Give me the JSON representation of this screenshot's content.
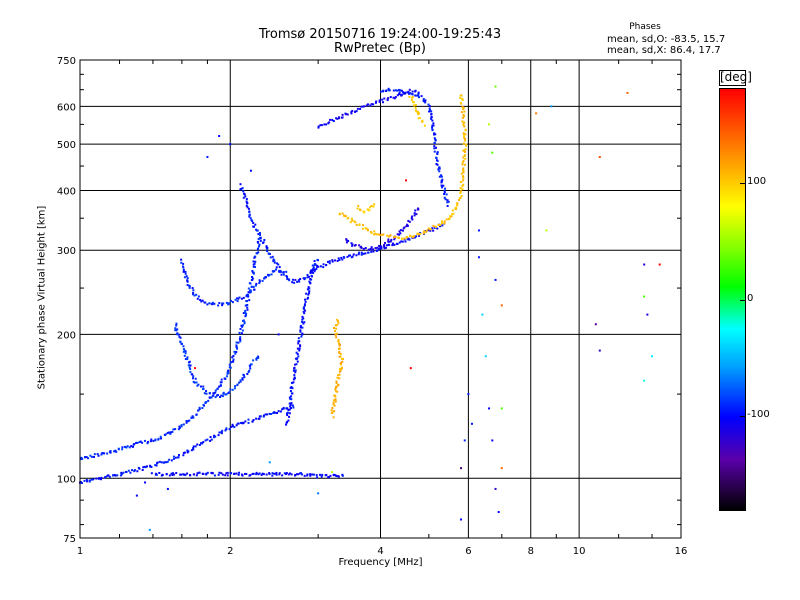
{
  "title_line1": "Tromsø 20150716 19:24:00-19:25:43",
  "title_line2": "RwPretec (Bp)",
  "phases": {
    "heading": "Phases",
    "o_line": "mean, sd,O: -83.5, 15.7",
    "x_line": "mean, sd,X: 86.4, 17.7"
  },
  "colorbar": {
    "unit": "[deg]",
    "ticks": [
      "100",
      "0",
      "-100"
    ],
    "tick_values": [
      100,
      0,
      -100
    ],
    "range": [
      -180,
      180
    ]
  },
  "chart_data": {
    "type": "scatter",
    "xlabel": "Frequency [MHz]",
    "ylabel": "Stationary phase Virtual Height [km]",
    "xscale": "log",
    "yscale": "log",
    "xlim": [
      1,
      16
    ],
    "ylim": [
      75,
      750
    ],
    "x_ticks": [
      "1",
      "2",
      "4",
      "6",
      "8",
      "10",
      "16"
    ],
    "x_tick_values": [
      1,
      2,
      4,
      6,
      8,
      10,
      16
    ],
    "y_ticks": [
      "750",
      "600",
      "500",
      "400",
      "300",
      "200",
      "100",
      "75"
    ],
    "y_tick_values": [
      750,
      600,
      500,
      400,
      300,
      200,
      100,
      75
    ],
    "grid": true,
    "traces": [
      {
        "phase": -95,
        "points": [
          [
            1.0,
            98
          ],
          [
            1.1,
            100
          ],
          [
            1.2,
            102
          ],
          [
            1.3,
            104
          ],
          [
            1.4,
            106
          ],
          [
            1.5,
            109
          ],
          [
            1.6,
            112
          ],
          [
            1.7,
            116
          ],
          [
            1.8,
            120
          ],
          [
            1.9,
            124
          ],
          [
            2.0,
            128
          ],
          [
            2.1,
            130
          ],
          [
            2.2,
            132
          ],
          [
            2.3,
            134
          ],
          [
            2.4,
            136
          ],
          [
            2.5,
            138
          ],
          [
            2.6,
            140
          ],
          [
            2.7,
            142
          ]
        ]
      },
      {
        "phase": -90,
        "points": [
          [
            1.0,
            110
          ],
          [
            1.1,
            112
          ],
          [
            1.2,
            115
          ],
          [
            1.3,
            118
          ],
          [
            1.4,
            120
          ],
          [
            1.5,
            124
          ],
          [
            1.6,
            128
          ],
          [
            1.7,
            136
          ],
          [
            1.8,
            145
          ],
          [
            1.9,
            155
          ],
          [
            2.0,
            170
          ],
          [
            2.05,
            185
          ],
          [
            2.1,
            200
          ],
          [
            2.15,
            225
          ],
          [
            2.2,
            255
          ],
          [
            2.25,
            290
          ],
          [
            2.3,
            320
          ]
        ]
      },
      {
        "phase": -100,
        "points": [
          [
            1.4,
            102
          ],
          [
            1.6,
            102
          ],
          [
            1.8,
            102
          ],
          [
            2.0,
            102
          ],
          [
            2.2,
            102
          ],
          [
            2.4,
            102
          ],
          [
            2.6,
            102
          ],
          [
            2.8,
            102
          ],
          [
            3.0,
            101
          ],
          [
            3.2,
            101
          ],
          [
            3.4,
            101
          ]
        ]
      },
      {
        "phase": -92,
        "points": [
          [
            1.6,
            285
          ],
          [
            1.62,
            270
          ],
          [
            1.65,
            255
          ],
          [
            1.7,
            242
          ],
          [
            1.75,
            235
          ],
          [
            1.8,
            232
          ],
          [
            1.9,
            231
          ],
          [
            2.0,
            233
          ],
          [
            2.1,
            238
          ],
          [
            2.2,
            245
          ],
          [
            2.3,
            258
          ],
          [
            2.4,
            268
          ],
          [
            2.5,
            272
          ],
          [
            2.6,
            268
          ]
        ]
      },
      {
        "phase": -88,
        "points": [
          [
            1.55,
            210
          ],
          [
            1.6,
            190
          ],
          [
            1.65,
            175
          ],
          [
            1.7,
            160
          ],
          [
            1.8,
            150
          ],
          [
            1.9,
            148
          ],
          [
            2.0,
            152
          ],
          [
            2.1,
            160
          ],
          [
            2.2,
            172
          ],
          [
            2.3,
            182
          ]
        ]
      },
      {
        "phase": -95,
        "points": [
          [
            2.1,
            410
          ],
          [
            2.15,
            380
          ],
          [
            2.2,
            350
          ],
          [
            2.3,
            320
          ],
          [
            2.4,
            295
          ],
          [
            2.5,
            275
          ],
          [
            2.6,
            262
          ],
          [
            2.7,
            258
          ],
          [
            2.8,
            260
          ],
          [
            2.9,
            270
          ],
          [
            3.0,
            290
          ]
        ]
      },
      {
        "phase": -98,
        "points": [
          [
            2.6,
            130
          ],
          [
            2.65,
            150
          ],
          [
            2.7,
            170
          ],
          [
            2.75,
            190
          ],
          [
            2.8,
            215
          ],
          [
            2.85,
            240
          ],
          [
            2.9,
            262
          ],
          [
            2.95,
            275
          ],
          [
            3.0,
            280
          ]
        ]
      },
      {
        "phase": -100,
        "points": [
          [
            2.9,
            270
          ],
          [
            3.2,
            285
          ],
          [
            3.5,
            292
          ],
          [
            3.8,
            298
          ],
          [
            4.1,
            305
          ],
          [
            4.4,
            312
          ],
          [
            4.7,
            320
          ],
          [
            5.0,
            330
          ],
          [
            5.2,
            335
          ],
          [
            5.4,
            340
          ]
        ]
      },
      {
        "phase": -110,
        "points": [
          [
            3.4,
            315
          ],
          [
            3.6,
            305
          ],
          [
            3.8,
            302
          ],
          [
            4.0,
            305
          ],
          [
            4.2,
            315
          ],
          [
            4.4,
            330
          ],
          [
            4.6,
            345
          ],
          [
            4.8,
            370
          ]
        ]
      },
      {
        "phase": -105,
        "points": [
          [
            3.0,
            545
          ],
          [
            3.2,
            560
          ],
          [
            3.4,
            575
          ],
          [
            3.6,
            590
          ],
          [
            3.8,
            605
          ],
          [
            4.0,
            615
          ],
          [
            4.2,
            625
          ],
          [
            4.4,
            635
          ],
          [
            4.6,
            645
          ],
          [
            4.8,
            640
          ]
        ]
      },
      {
        "phase": -95,
        "points": [
          [
            4.0,
            640
          ],
          [
            4.2,
            650
          ],
          [
            4.4,
            645
          ],
          [
            4.6,
            640
          ],
          [
            4.8,
            630
          ],
          [
            5.0,
            600
          ],
          [
            5.1,
            550
          ],
          [
            5.15,
            500
          ],
          [
            5.2,
            460
          ],
          [
            5.3,
            420
          ],
          [
            5.4,
            390
          ],
          [
            5.5,
            370
          ]
        ]
      },
      {
        "phase": 110,
        "points": [
          [
            3.2,
            135
          ],
          [
            3.25,
            150
          ],
          [
            3.3,
            165
          ],
          [
            3.35,
            175
          ],
          [
            3.3,
            190
          ],
          [
            3.25,
            205
          ],
          [
            3.3,
            215
          ]
        ]
      },
      {
        "phase": 105,
        "points": [
          [
            3.3,
            360
          ],
          [
            3.6,
            340
          ],
          [
            3.9,
            325
          ],
          [
            4.2,
            320
          ],
          [
            4.5,
            318
          ],
          [
            4.8,
            325
          ],
          [
            5.1,
            335
          ],
          [
            5.4,
            345
          ],
          [
            5.6,
            360
          ],
          [
            5.8,
            390
          ],
          [
            5.85,
            430
          ],
          [
            5.9,
            480
          ],
          [
            5.9,
            530
          ],
          [
            5.85,
            590
          ],
          [
            5.8,
            640
          ]
        ]
      },
      {
        "phase": 100,
        "points": [
          [
            4.6,
            630
          ],
          [
            4.7,
            600
          ],
          [
            4.8,
            570
          ],
          [
            4.9,
            545
          ]
        ]
      },
      {
        "phase": 100,
        "points": [
          [
            3.6,
            370
          ],
          [
            3.7,
            360
          ],
          [
            3.8,
            365
          ],
          [
            3.9,
            375
          ]
        ]
      }
    ],
    "scatter_points": [
      [
        6.3,
        330,
        -95
      ],
      [
        6.3,
        290,
        -95
      ],
      [
        6.4,
        220,
        -40
      ],
      [
        6.5,
        180,
        -40
      ],
      [
        6.6,
        140,
        -100
      ],
      [
        6.7,
        120,
        -100
      ],
      [
        6.8,
        95,
        -120
      ],
      [
        6.9,
        85,
        -100
      ],
      [
        7.0,
        230,
        140
      ],
      [
        7.0,
        105,
        140
      ],
      [
        7.0,
        140,
        30
      ],
      [
        6.8,
        260,
        -95
      ],
      [
        6.7,
        480,
        30
      ],
      [
        6.6,
        550,
        60
      ],
      [
        6.8,
        660,
        40
      ],
      [
        8.6,
        330,
        60
      ],
      [
        8.8,
        600,
        -60
      ],
      [
        8.2,
        580,
        130
      ],
      [
        11.0,
        470,
        150
      ],
      [
        11.0,
        185,
        -120
      ],
      [
        10.8,
        210,
        -140
      ],
      [
        12.5,
        640,
        140
      ],
      [
        13.5,
        280,
        -110
      ],
      [
        13.5,
        240,
        30
      ],
      [
        13.7,
        220,
        -110
      ],
      [
        14.0,
        180,
        -30
      ],
      [
        13.5,
        160,
        -20
      ],
      [
        14.5,
        280,
        180
      ],
      [
        5.8,
        82,
        -100
      ],
      [
        5.8,
        105,
        -150
      ],
      [
        5.9,
        120,
        -90
      ],
      [
        6.0,
        150,
        -95
      ],
      [
        6.1,
        130,
        -95
      ],
      [
        4.5,
        420,
        180
      ],
      [
        4.6,
        170,
        180
      ],
      [
        1.3,
        92,
        -100
      ],
      [
        1.35,
        98,
        -100
      ],
      [
        1.38,
        78,
        -60
      ],
      [
        1.5,
        95,
        -100
      ],
      [
        1.7,
        170,
        180
      ],
      [
        2.5,
        200,
        -110
      ],
      [
        2.7,
        260,
        -120
      ],
      [
        1.8,
        470,
        -95
      ],
      [
        1.9,
        520,
        -100
      ],
      [
        2.0,
        500,
        -100
      ],
      [
        2.2,
        440,
        -100
      ],
      [
        3.0,
        93,
        -70
      ],
      [
        3.2,
        103,
        60
      ],
      [
        2.4,
        108,
        -60
      ]
    ]
  }
}
